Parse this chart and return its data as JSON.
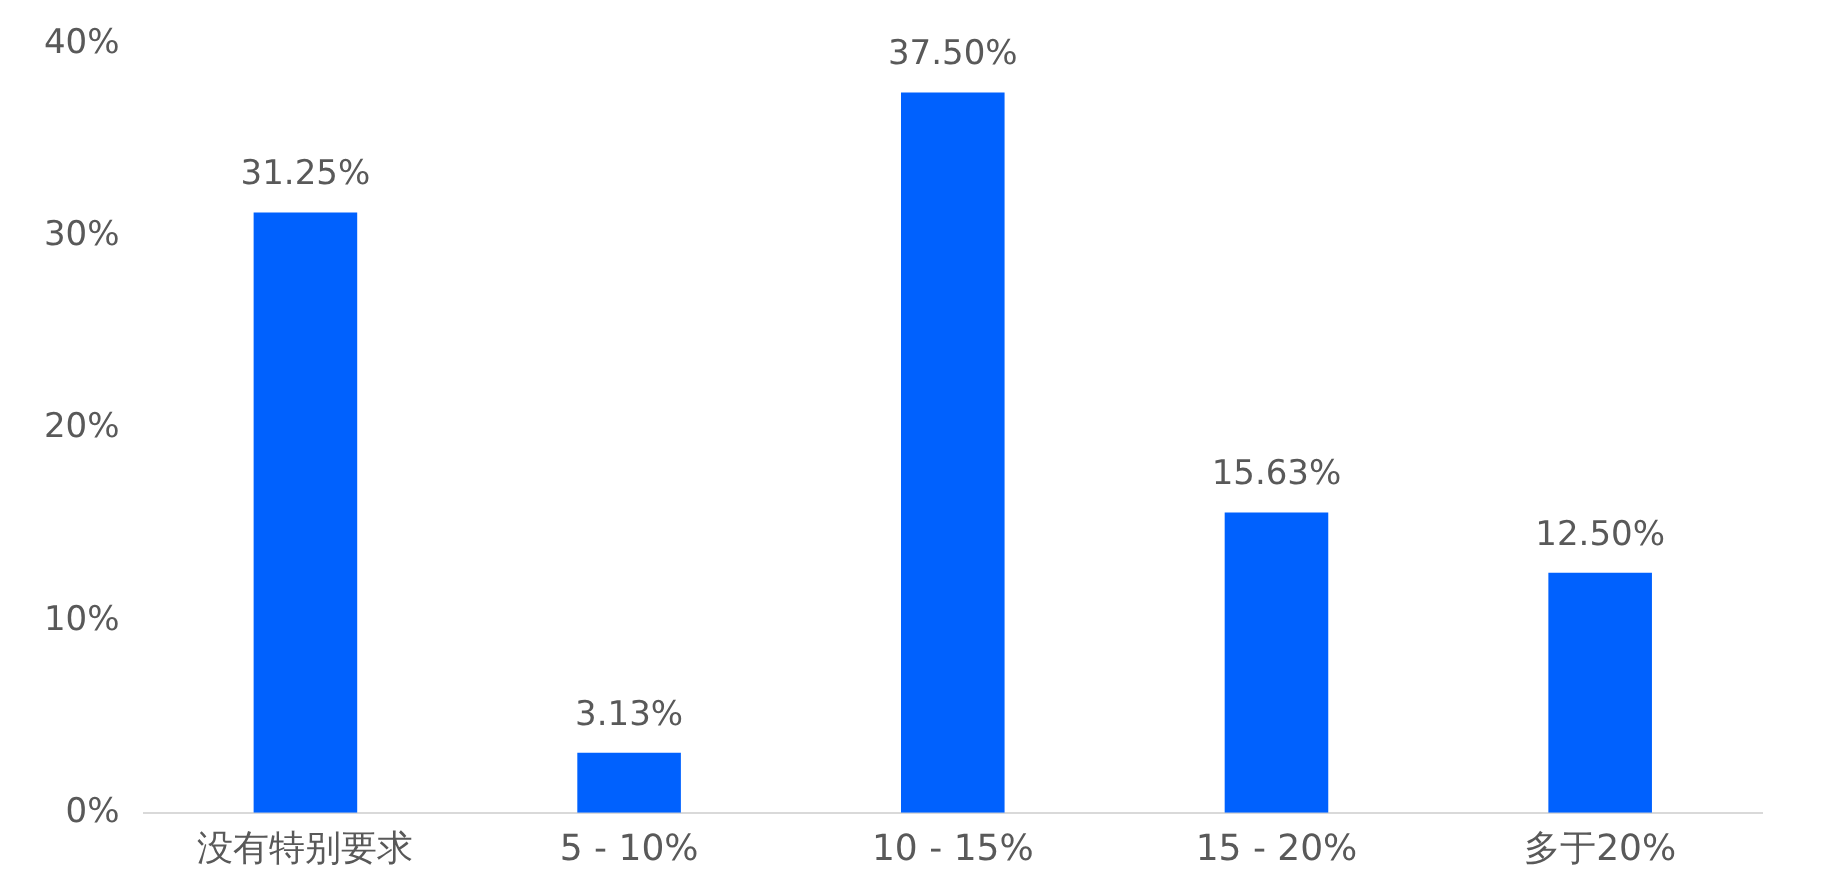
{
  "chart_data": {
    "type": "bar",
    "categories": [
      "没有特别要求",
      "5 - 10%",
      "10 - 15%",
      "15 - 20%",
      "多于20%"
    ],
    "values": [
      31.25,
      3.13,
      37.5,
      15.63,
      12.5
    ],
    "value_labels": [
      "31.25%",
      "3.13%",
      "37.50%",
      "15.63%",
      "12.50%"
    ],
    "color": "#0061fe",
    "ylim": [
      0,
      40
    ],
    "yticks": [
      {
        "value": 0,
        "label": "0%"
      },
      {
        "value": 10,
        "label": "10%"
      },
      {
        "value": 20,
        "label": "20%"
      },
      {
        "value": 30,
        "label": "30%"
      },
      {
        "value": 40,
        "label": "40%"
      }
    ],
    "grid": false,
    "legend": false
  }
}
